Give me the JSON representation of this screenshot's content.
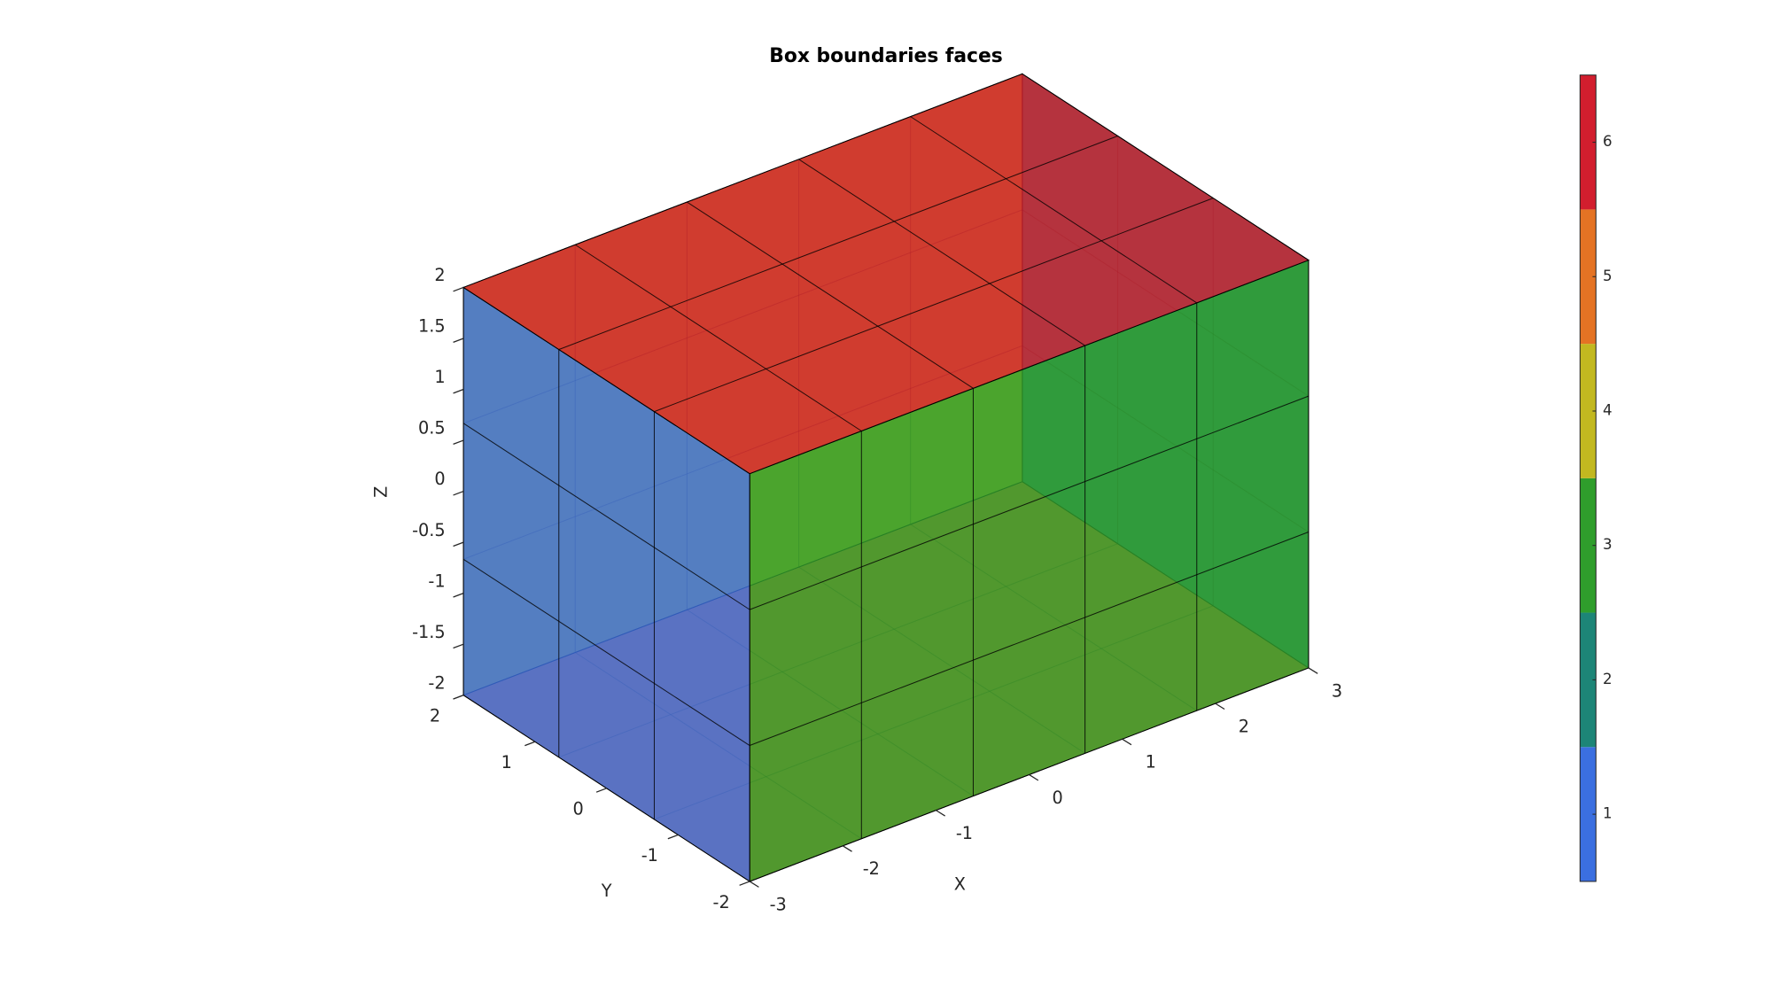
{
  "chart_data": {
    "type": "box3d",
    "title": "Box boundaries faces",
    "xlabel": "X",
    "ylabel": "Y",
    "zlabel": "Z",
    "xlim": [
      -3,
      3
    ],
    "ylim": [
      -2,
      2
    ],
    "zlim": [
      -2,
      2
    ],
    "xticks": [
      -3,
      -2,
      -1,
      0,
      1,
      2,
      3
    ],
    "yticks": [
      -2,
      -1,
      0,
      1,
      2
    ],
    "zticks": [
      -2,
      -1.5,
      -1,
      -0.5,
      0,
      0.5,
      1,
      1.5,
      2
    ],
    "divisions": [
      5,
      3,
      3
    ],
    "face_values": [
      1,
      2,
      3,
      4,
      5,
      6
    ],
    "colorbar": {
      "clim": [
        0.5,
        6.5
      ],
      "ticks": [
        1,
        2,
        3,
        4,
        5,
        6
      ],
      "colors": [
        "#3b6fe0",
        "#1d8577",
        "#2f9e2c",
        "#c2b820",
        "#e47324",
        "#d21e2e"
      ]
    }
  }
}
